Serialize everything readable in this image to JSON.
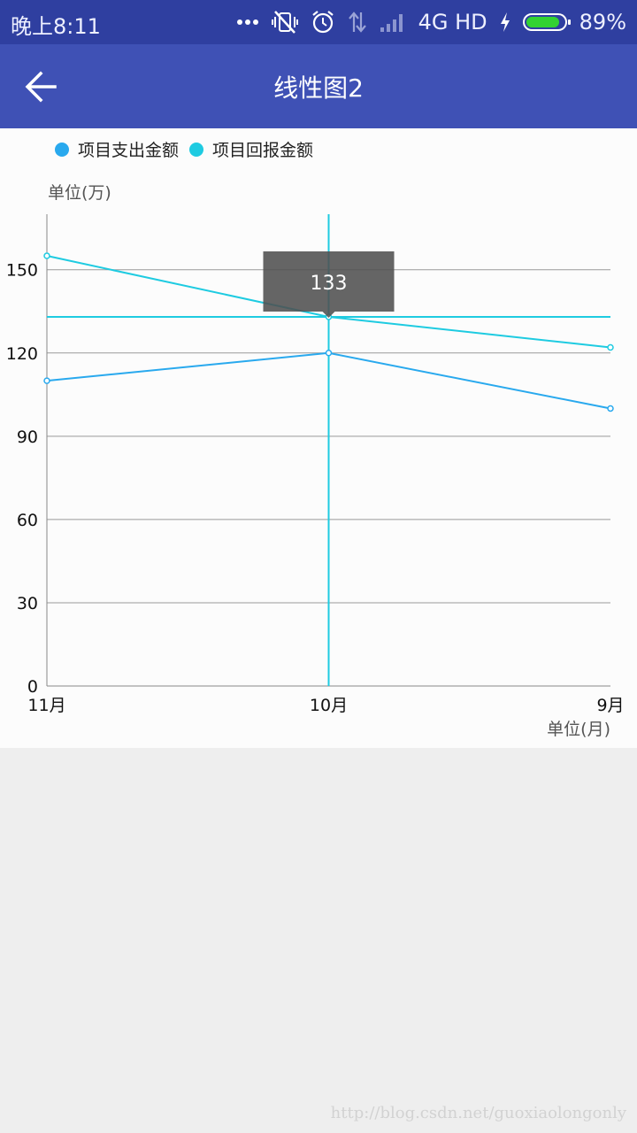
{
  "status_bar": {
    "time": "晚上8:11",
    "network": "4G HD",
    "battery_percent": "89%",
    "battery_level": 89,
    "icons": [
      "more-dots-icon",
      "vibrate-off-icon",
      "alarm-icon",
      "data-transfer-icon",
      "signal-icon",
      "charging-icon",
      "battery-icon"
    ]
  },
  "app_bar": {
    "title": "线性图2",
    "back_icon": "arrow-left-icon"
  },
  "chart": {
    "unit_y": "单位(万)",
    "unit_x": "单位(月)",
    "tooltip_value": "133",
    "legend_placement": "top-left"
  },
  "chart_data": {
    "type": "line",
    "categories": [
      "11月",
      "10月",
      "9月"
    ],
    "series": [
      {
        "name": "项目支出金额",
        "color": "#29a9ee",
        "values": [
          110,
          120,
          100
        ]
      },
      {
        "name": "项目回报金额",
        "color": "#1ecbe1",
        "values": [
          155,
          133,
          122
        ]
      }
    ],
    "ylim": [
      0,
      170
    ],
    "yticks": [
      0,
      30,
      60,
      90,
      120,
      150
    ],
    "grid": true,
    "highlight": {
      "category": "10月",
      "series": "项目回报金额",
      "value": 133
    }
  },
  "watermark": "http://blog.csdn.net/guoxiaolongonly"
}
